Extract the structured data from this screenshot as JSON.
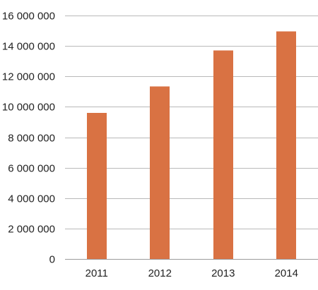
{
  "chart_data": {
    "type": "bar",
    "title": "",
    "xlabel": "",
    "ylabel": "",
    "categories": [
      "2011",
      "2012",
      "2013",
      "2014"
    ],
    "series": [
      {
        "values": [
          9600000,
          11350000,
          13700000,
          14950000
        ],
        "color": "#d97243"
      }
    ],
    "ylim": [
      0,
      16000000
    ],
    "y_ticks": [
      0,
      2000000,
      4000000,
      6000000,
      8000000,
      10000000,
      12000000,
      14000000,
      16000000
    ],
    "y_tick_labels": [
      "0",
      "2 000 000",
      "4 000 000",
      "6 000 000",
      "8 000 000",
      "10 000 000",
      "12 000 000",
      "14 000 000",
      "16 000 000"
    ],
    "grid": true,
    "legend": "none"
  }
}
